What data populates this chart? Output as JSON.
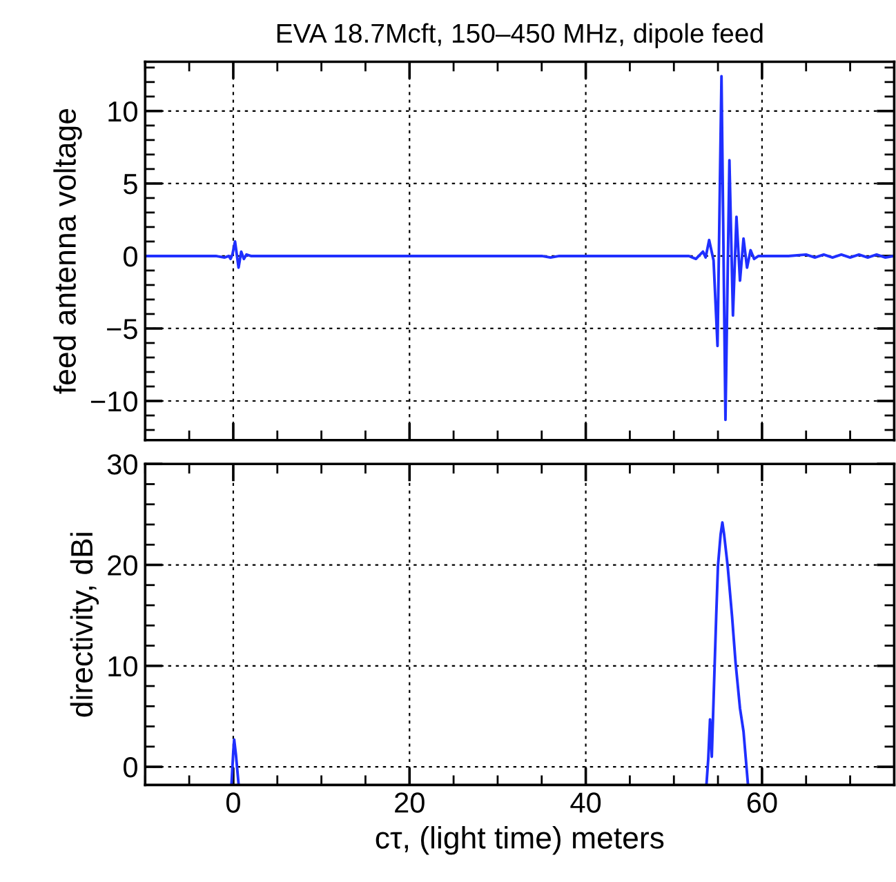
{
  "chart_data": [
    {
      "type": "line",
      "title": "EVA 18.7Mcft, 150–450 MHz, dipole feed",
      "ylabel": "feed antenna voltage",
      "xlim": [
        -10,
        75
      ],
      "ylim": [
        -12.7,
        13.4
      ],
      "xticks": [
        0,
        20,
        40,
        60
      ],
      "yticks": [
        -10,
        -5,
        0,
        5,
        10
      ],
      "grid": true,
      "tick_labels": "y",
      "series": [
        {
          "color": "#1f2fff",
          "x": [
            -10,
            -2,
            -1,
            -0.5,
            -0.3,
            -0.1,
            0.2,
            0.6,
            0.9,
            1.2,
            1.5,
            2,
            4,
            10,
            20,
            30,
            35,
            36,
            37,
            40,
            45,
            48,
            50,
            51.7,
            52.5,
            53.3,
            53.6,
            54.0,
            54.5,
            54.95,
            55.4,
            55.85,
            56.3,
            56.7,
            57.1,
            57.5,
            57.9,
            58.3,
            58.7,
            59.1,
            59.6,
            61,
            63,
            65,
            66,
            67,
            68,
            69,
            70,
            71,
            72,
            73,
            74,
            75
          ],
          "values": [
            0,
            0,
            -0.1,
            0,
            -0.2,
            0.1,
            1.0,
            -0.8,
            0.3,
            -0.2,
            0.1,
            0,
            0,
            0,
            0,
            0,
            0,
            -0.1,
            0,
            0,
            0,
            0,
            0,
            0,
            -0.2,
            0.3,
            -0.1,
            1.1,
            -0.3,
            -6.2,
            12.4,
            -11.3,
            6.6,
            -4.1,
            2.7,
            -1.7,
            1.2,
            -0.8,
            0.4,
            -0.2,
            0,
            0,
            0,
            0.1,
            -0.1,
            0.1,
            -0.1,
            0.1,
            -0.1,
            0.1,
            -0.1,
            0.1,
            -0.1,
            0
          ]
        }
      ]
    },
    {
      "type": "line",
      "xlabel": "cτ, (light time) meters",
      "ylabel": "directivity, dBi",
      "xlim": [
        -10,
        75
      ],
      "ylim": [
        -1.8,
        30
      ],
      "xticks": [
        0,
        20,
        40,
        60
      ],
      "yticks": [
        0,
        10,
        20,
        30
      ],
      "grid": true,
      "series": [
        {
          "color": "#1f2fff",
          "x": [
            -0.2,
            0,
            0.1,
            0.3,
            0.6
          ],
          "values": [
            -1.7,
            1.5,
            2.7,
            1.2,
            -1.7
          ]
        },
        {
          "color": "#1f2fff",
          "x": [
            53.7,
            53.9,
            54.1,
            54.3,
            54.6,
            54.8,
            55.0,
            55.3,
            55.5,
            55.7,
            56.1,
            56.6,
            57.0,
            57.5,
            57.9,
            58.4
          ],
          "values": [
            -1.7,
            0.8,
            4.7,
            1.0,
            9.4,
            14.9,
            19.9,
            23.0,
            24.2,
            23.0,
            19.9,
            14.9,
            10.3,
            5.8,
            3.5,
            -1.7
          ]
        }
      ]
    }
  ]
}
